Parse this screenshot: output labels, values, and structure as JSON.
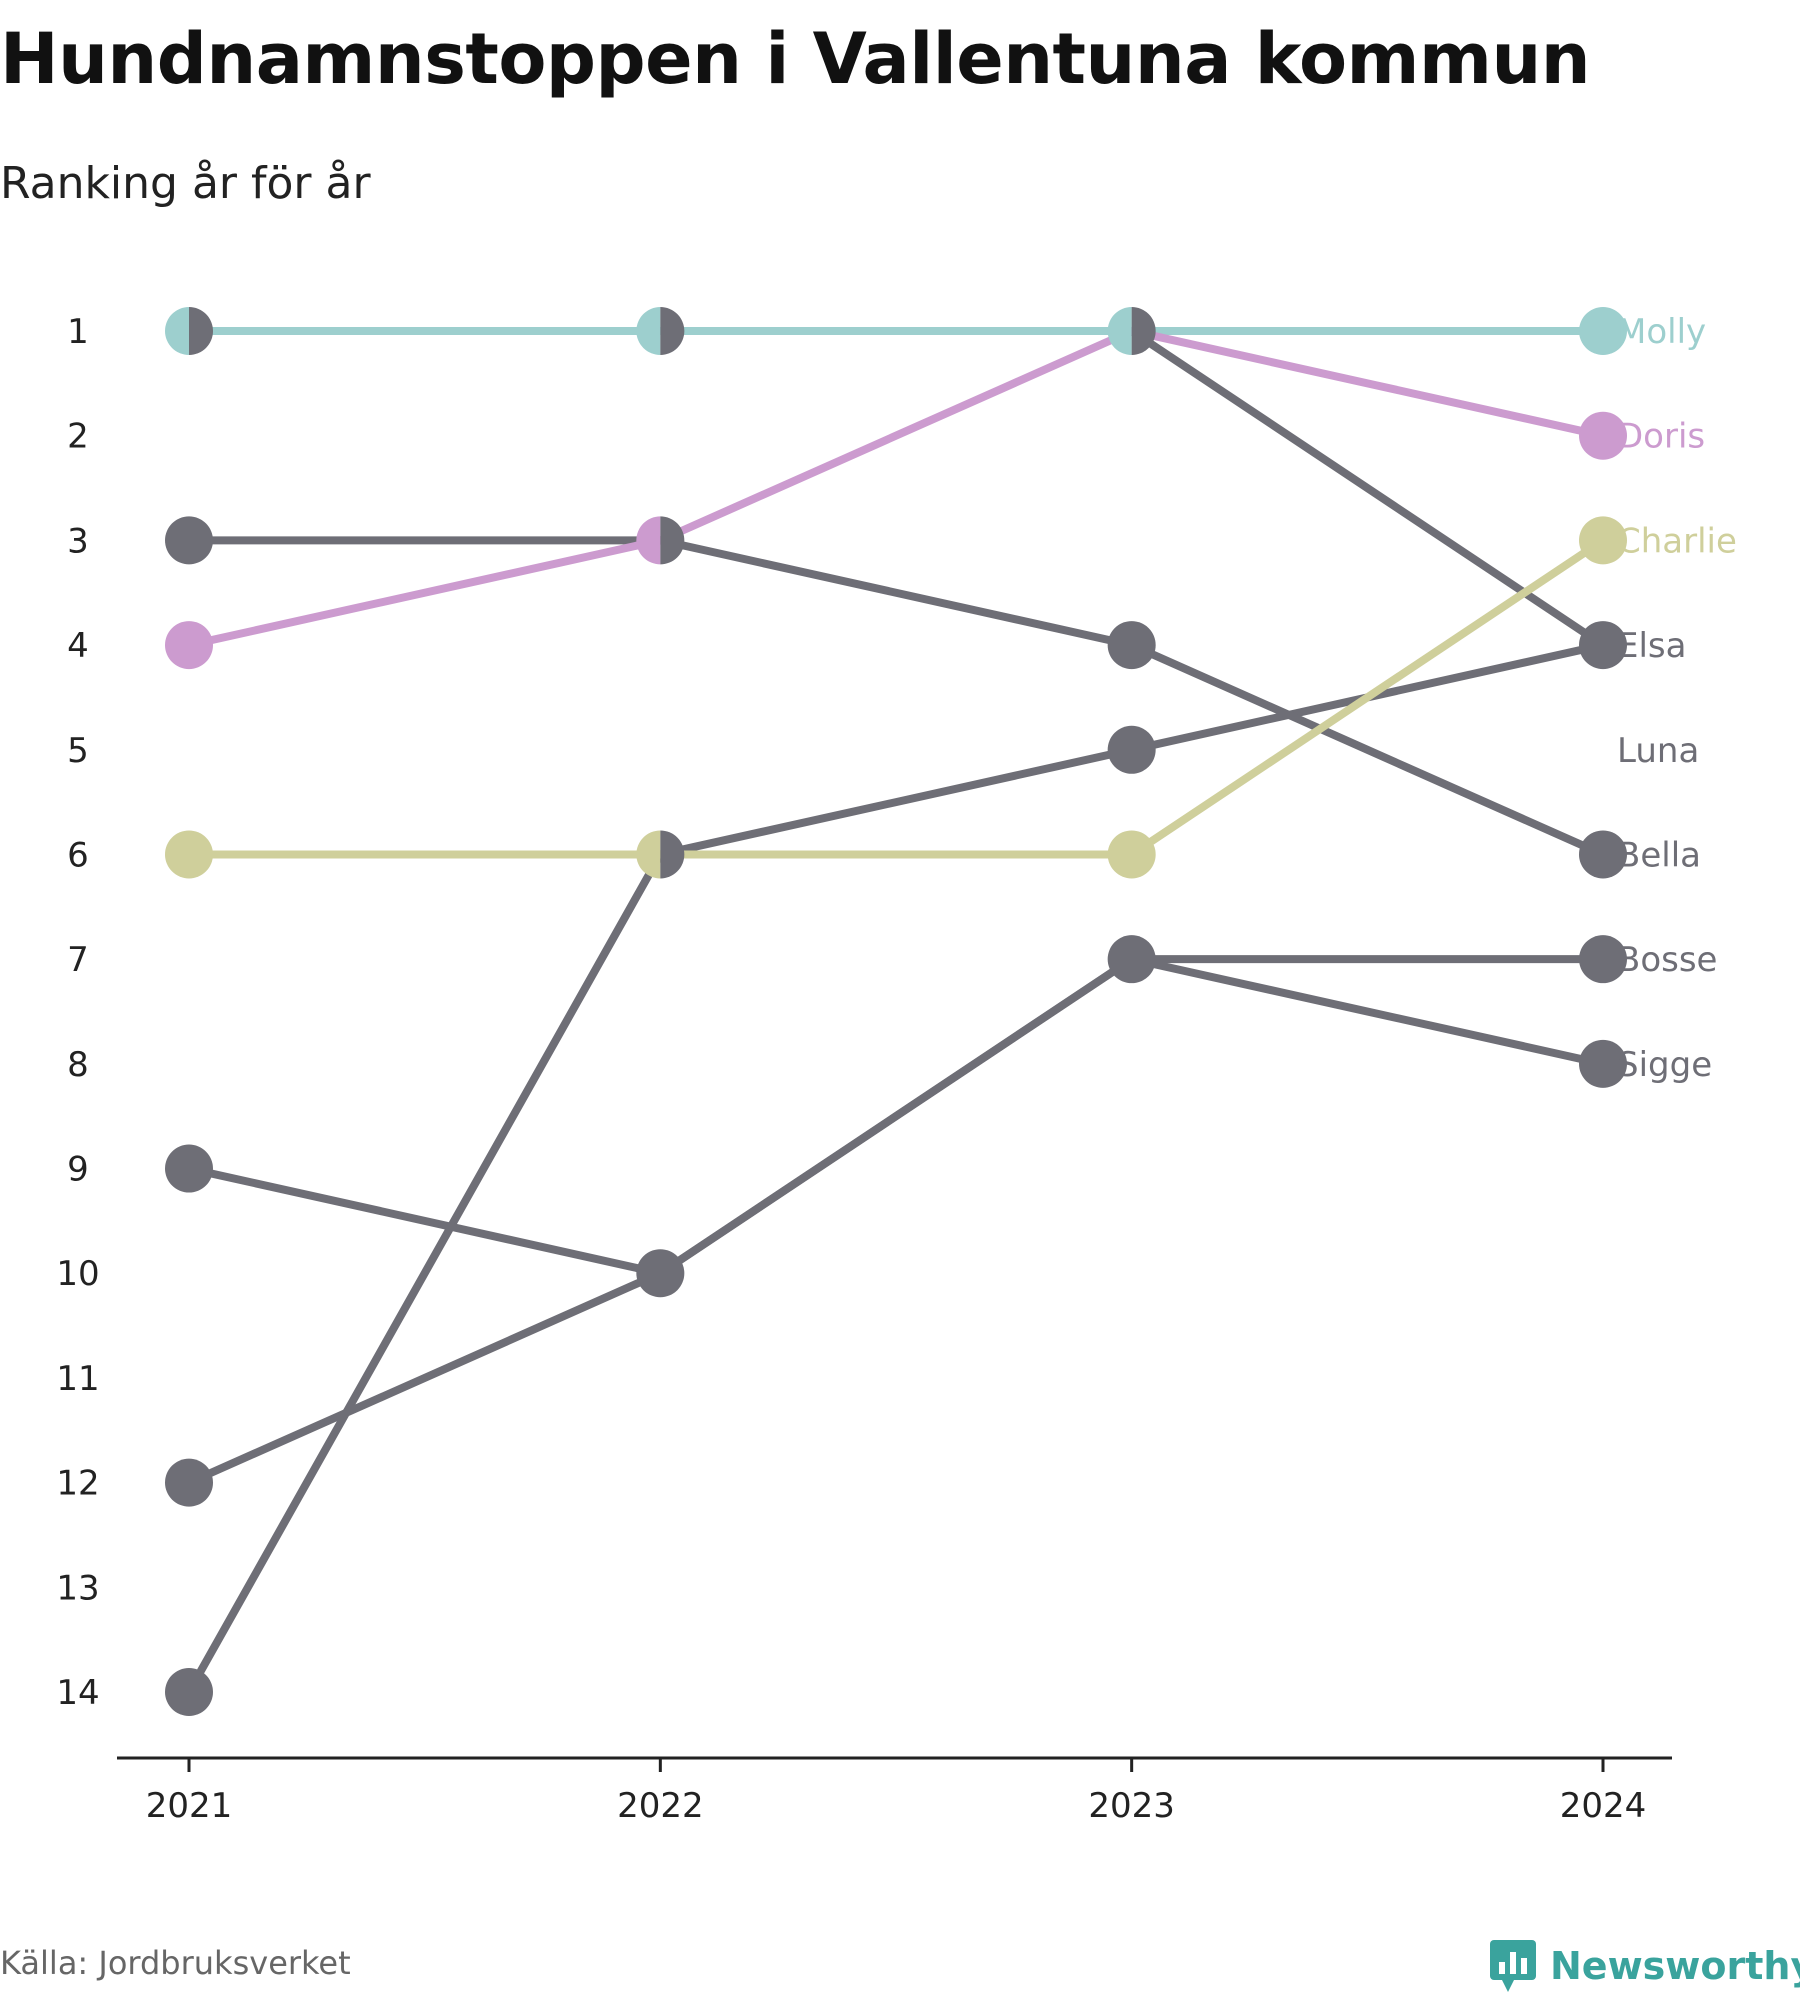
{
  "title": "Hundnamnstoppen i Vallentuna kommun",
  "subtitle": "Ranking år för år",
  "source": "Källa: Jordbruksverket",
  "brand": "Newsworthy",
  "chart_data": {
    "type": "line",
    "x": [
      "2021",
      "2022",
      "2023",
      "2024"
    ],
    "y_ticks": [
      "1",
      "2",
      "3",
      "4",
      "5",
      "6",
      "7",
      "8",
      "9",
      "10",
      "11",
      "12",
      "13",
      "14"
    ],
    "ylim": [
      1,
      14
    ],
    "y_inverted": true,
    "grid": false,
    "series": [
      {
        "name": "Molly",
        "color": "#9dcfce",
        "values": [
          1,
          1,
          1,
          1
        ]
      },
      {
        "name": "Doris",
        "color": "#cc9bcf",
        "values": [
          4,
          3,
          1,
          2
        ]
      },
      {
        "name": "Charlie",
        "color": "#cfcf9b",
        "values": [
          6,
          6,
          6,
          3
        ]
      },
      {
        "name": "Elsa",
        "color": "#6e6e76",
        "values": [
          1,
          1,
          1,
          4
        ]
      },
      {
        "name": "Luna",
        "color": "#6e6e76",
        "values": [
          14,
          6,
          5,
          4
        ]
      },
      {
        "name": "Bella",
        "color": "#6e6e76",
        "values": [
          3,
          3,
          4,
          6
        ]
      },
      {
        "name": "Bosse",
        "color": "#6e6e76",
        "values": [
          12,
          10,
          7,
          7
        ]
      },
      {
        "name": "Sigge",
        "color": "#6e6e76",
        "values": [
          9,
          10,
          7,
          8
        ]
      }
    ],
    "end_labels": [
      {
        "name": "Molly",
        "rank": 1,
        "color": "#9dcfce"
      },
      {
        "name": "Doris",
        "rank": 2,
        "color": "#cc9bcf"
      },
      {
        "name": "Charlie",
        "rank": 3,
        "color": "#cfcf9b"
      },
      {
        "name": "Elsa",
        "rank": 4,
        "color": "#6e6e76"
      },
      {
        "name": "Luna",
        "rank": 5,
        "color": "#6e6e76"
      },
      {
        "name": "Bella",
        "rank": 6,
        "color": "#6e6e76"
      },
      {
        "name": "Bosse",
        "rank": 7,
        "color": "#6e6e76"
      },
      {
        "name": "Sigge",
        "rank": 8,
        "color": "#6e6e76"
      }
    ]
  }
}
